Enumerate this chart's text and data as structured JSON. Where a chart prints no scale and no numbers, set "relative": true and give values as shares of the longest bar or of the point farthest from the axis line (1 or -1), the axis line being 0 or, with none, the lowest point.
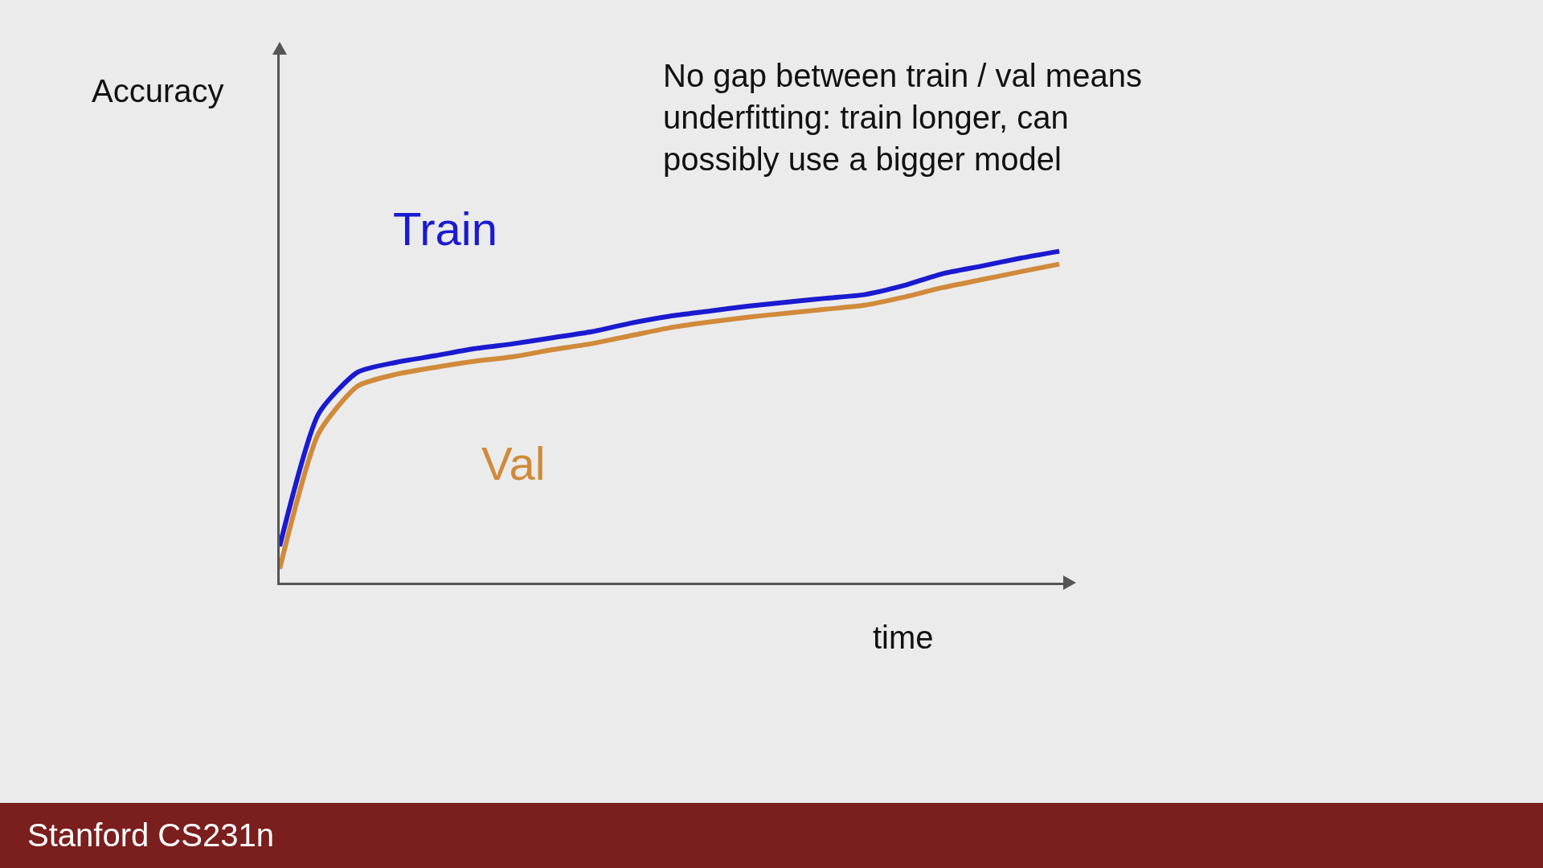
{
  "chart_data": {
    "type": "line",
    "relative": true,
    "xlabel": "time",
    "ylabel": "Accuracy",
    "categories": [
      null,
      null,
      null,
      null,
      null,
      null,
      null,
      null,
      null,
      null,
      null,
      null,
      null,
      null,
      null,
      null,
      null,
      null,
      null,
      null,
      null
    ],
    "series": [
      {
        "name": "Train",
        "color": "#1a1ad0",
        "values": [
          0.11,
          0.51,
          0.635,
          0.665,
          0.685,
          0.706,
          0.721,
          0.739,
          0.757,
          0.783,
          0.804,
          0.819,
          0.834,
          0.846,
          0.858,
          0.869,
          0.896,
          0.932,
          0.955,
          0.979,
          1
        ]
      },
      {
        "name": "Val",
        "color": "#d08a3a",
        "values": [
          0.042,
          0.451,
          0.593,
          0.629,
          0.65,
          0.668,
          0.682,
          0.703,
          0.721,
          0.745,
          0.769,
          0.786,
          0.801,
          0.813,
          0.825,
          0.837,
          0.861,
          0.89,
          0.914,
          0.938,
          0.961
        ]
      }
    ],
    "annotations": [
      "No gap between train / val means\nunderfitting: train longer, can\npossibly use a bigger model",
      "Stanford CS231n"
    ],
    "legend": false,
    "marker": "none",
    "line_style": "solid"
  }
}
